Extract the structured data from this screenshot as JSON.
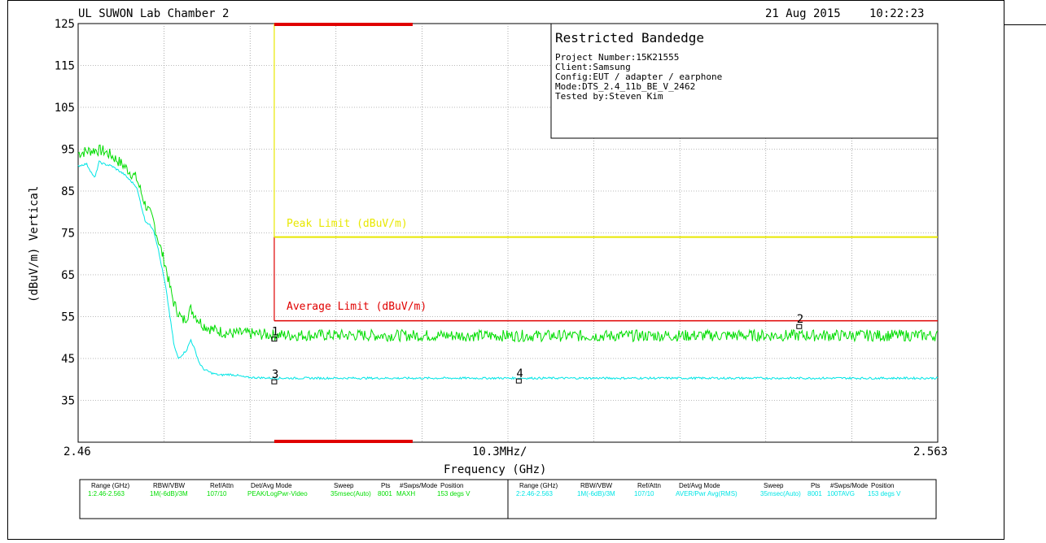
{
  "header": {
    "lab": "UL SUWON Lab Chamber 2",
    "date": "21 Aug 2015",
    "time": "10:22:23"
  },
  "info_box": {
    "title": "Restricted Bandedge",
    "lines": [
      "Project Number:15K21555",
      "Client:Samsung",
      "Config:EUT / adapter / earphone",
      "Mode:DTS_2.4_11b_BE_V_2462",
      "Tested by:Steven Kim"
    ]
  },
  "labels": {
    "peak_limit": "Peak Limit (dBuV/m)",
    "average_limit": "Average Limit (dBuV/m)"
  },
  "colors": {
    "trace_peak": "#00dd00",
    "trace_avg": "#00e5e5",
    "peak_limit": "#e8e800",
    "average_limit": "#e00000",
    "band_edge": "#e00000",
    "grid": "#777777"
  },
  "chart_data": {
    "type": "line",
    "xlabel": "Frequency (GHz)",
    "ylabel": "(dBuV/m) Vertical",
    "x_start_label": "2.46",
    "x_stop_label": "2.563",
    "x_span_label": "10.3MHz/",
    "xlim": [
      2.46,
      2.563
    ],
    "ylim": [
      25,
      125
    ],
    "y_ticks": [
      "125",
      "115",
      "105",
      "95",
      "85",
      "75",
      "65",
      "55",
      "45",
      "35"
    ],
    "y_tick_values": [
      125,
      115,
      105,
      95,
      85,
      75,
      65,
      55,
      45,
      35
    ],
    "grid": true,
    "band_edge_x": 2.4835,
    "peak_limit": {
      "value": 74,
      "x_from": 2.4835
    },
    "average_limit": {
      "value": 54,
      "x_from": 2.4835
    },
    "series": [
      {
        "key": "peak",
        "x": [
          2.46,
          2.461,
          2.462,
          2.463,
          2.464,
          2.4655,
          2.467,
          2.468,
          2.469,
          2.4695,
          2.4705,
          2.471,
          2.4715,
          2.4725,
          2.473,
          2.4735,
          2.474,
          2.4745,
          2.475,
          2.476,
          2.477,
          2.478,
          2.48,
          2.4835,
          2.5,
          2.52,
          2.54,
          2.563
        ],
        "y": [
          94,
          94.5,
          94.8,
          94.6,
          93.5,
          91,
          88,
          82,
          78,
          74,
          67,
          62,
          58,
          54,
          55,
          56.8,
          55.5,
          54,
          53,
          52,
          51.5,
          51,
          51,
          50.6,
          50.5,
          50.4,
          50.5,
          50.5
        ]
      },
      {
        "key": "average",
        "x": [
          2.46,
          2.461,
          2.462,
          2.4625,
          2.463,
          2.464,
          2.4655,
          2.467,
          2.468,
          2.469,
          2.4695,
          2.4705,
          2.471,
          2.4715,
          2.472,
          2.473,
          2.4735,
          2.474,
          2.4745,
          2.475,
          2.476,
          2.477,
          2.478,
          2.479,
          2.48,
          2.4835,
          2.5,
          2.52,
          2.54,
          2.563
        ],
        "y": [
          91,
          91.5,
          88,
          92,
          91.5,
          91,
          89,
          86,
          78,
          76,
          72,
          62,
          55,
          48,
          45,
          47,
          49.5,
          47,
          44,
          42.5,
          41.5,
          41,
          41.2,
          41,
          40.5,
          40.3,
          40.3,
          40.3,
          40.3,
          40.3
        ]
      }
    ],
    "markers": [
      {
        "label": "1",
        "x": 2.4835,
        "y": 50.5,
        "color": "#000000"
      },
      {
        "label": "2",
        "x": 2.5464,
        "y": 53.5,
        "color": "#000000"
      },
      {
        "label": "3",
        "x": 2.4835,
        "y": 40.3,
        "color": "#000000"
      },
      {
        "label": "4",
        "x": 2.5128,
        "y": 40.5,
        "color": "#000000"
      }
    ]
  },
  "settings_table": {
    "headers": [
      "Range (GHz)",
      "RBW/VBW",
      "Ref/Attn",
      "Det/Avg Mode",
      "Sweep",
      "Pts",
      "#Swps/Mode",
      "Position"
    ],
    "rows": [
      [
        "1:2.46-2.563",
        "1M(-6dB)/3M",
        "107/10",
        "PEAK/LogPwr-Video",
        "35msec(Auto)",
        "8001",
        "MAXH",
        "153 degs V"
      ],
      [
        "2:2.46-2.563",
        "1M(-6dB)/3M",
        "107/10",
        "AVER/Pwr Avg(RMS)",
        "35msec(Auto)",
        "8001",
        "100TAVG",
        "153 degs V"
      ]
    ]
  }
}
